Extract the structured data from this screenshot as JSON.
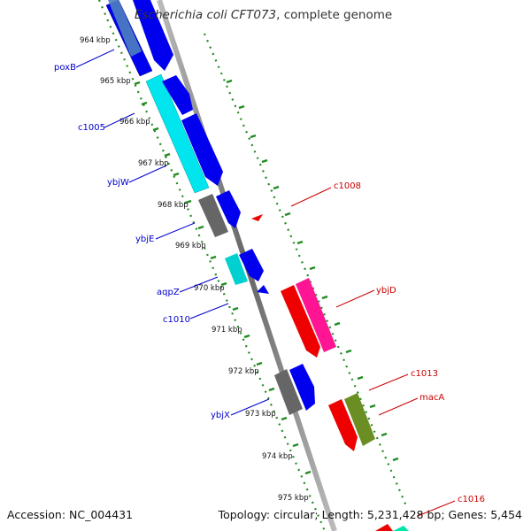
{
  "header": {
    "organism": "Escherichia coli CFT073",
    "suffix": ", complete genome"
  },
  "footer": {
    "accession": "Accession: NC_004431",
    "summary": "Topology: circular; Length: 5,231,428 bp; Genes: 5,454"
  },
  "map": {
    "ticks": [
      "964 kbp",
      "965 kbp",
      "966 kbp",
      "967 kbp",
      "968 kbp",
      "969 kbp",
      "970 kbp",
      "971 kbp",
      "972 kbp",
      "973 kbp",
      "974 kbp",
      "975 kbp"
    ],
    "labels_left": [
      "poxB",
      "c1005",
      "ybjW",
      "ybjE",
      "aqpZ",
      "c1010",
      "ybjX"
    ],
    "labels_right": [
      "c1008",
      "ybjD",
      "c1013",
      "macA",
      "c1016"
    ],
    "colors": {
      "blue": "#0000ee",
      "cyan": "#00e5ee",
      "gray": "#666666",
      "red": "#ee0000",
      "pink": "#ff1493",
      "olive": "#6b8e23",
      "tick_green": "#228b22",
      "label_left": "#0000cc",
      "label_right": "#cc0000"
    }
  }
}
